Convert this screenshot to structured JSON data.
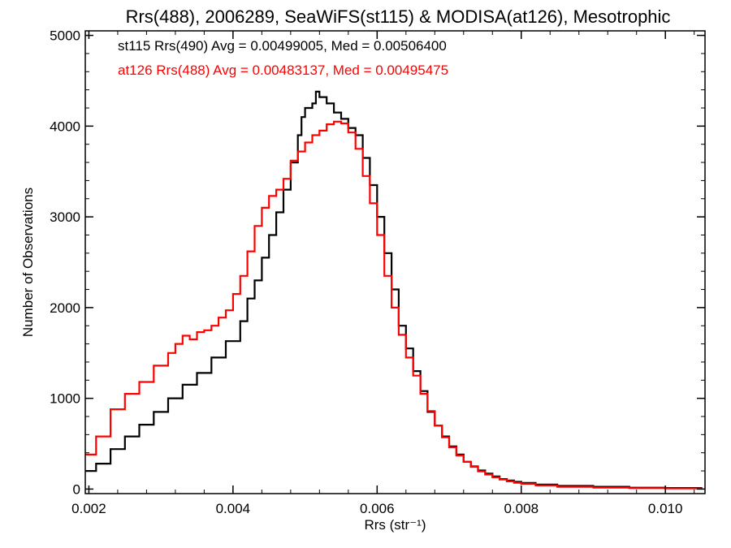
{
  "chart_data": {
    "type": "line",
    "title": "Rrs(488), 2006289, SeaWiFS(st115) & MODISA(at126), Mesotrophic",
    "xlabel": "Rrs (str⁻¹)",
    "ylabel": "Number of Observations",
    "xlim": [
      0.00195,
      0.01055
    ],
    "ylim": [
      -50,
      5050
    ],
    "x_ticks": [
      0.002,
      0.004,
      0.006,
      0.008,
      0.01
    ],
    "x_tick_labels": [
      "0.002",
      "0.004",
      "0.006",
      "0.008",
      "0.010"
    ],
    "y_ticks": [
      0,
      1000,
      2000,
      3000,
      4000,
      5000
    ],
    "y_tick_labels": [
      "0",
      "1000",
      "2000",
      "3000",
      "4000",
      "5000"
    ],
    "grid": false,
    "legend_position": "top-left",
    "series": [
      {
        "name": "st115 Rrs(490) Avg = 0.00499005, Med = 0.00506400",
        "color": "#000000",
        "x": [
          0.00195,
          0.0021,
          0.0023,
          0.0025,
          0.0027,
          0.0029,
          0.0031,
          0.0033,
          0.0035,
          0.0037,
          0.0039,
          0.0041,
          0.0042,
          0.0043,
          0.0044,
          0.0045,
          0.0046,
          0.0047,
          0.0048,
          0.0049,
          0.00495,
          0.005,
          0.0051,
          0.00515,
          0.0052,
          0.0053,
          0.0054,
          0.0055,
          0.0056,
          0.0057,
          0.0058,
          0.0059,
          0.006,
          0.0061,
          0.0062,
          0.0063,
          0.0064,
          0.0065,
          0.0066,
          0.0067,
          0.0068,
          0.0069,
          0.007,
          0.0071,
          0.0072,
          0.0073,
          0.0074,
          0.0075,
          0.0076,
          0.0077,
          0.0078,
          0.0079,
          0.008,
          0.0082,
          0.0085,
          0.009,
          0.0095,
          0.01,
          0.0105
        ],
        "values": [
          200,
          280,
          440,
          580,
          710,
          850,
          1000,
          1150,
          1280,
          1450,
          1630,
          1850,
          2100,
          2300,
          2550,
          2800,
          3050,
          3300,
          3600,
          3900,
          4100,
          4200,
          4250,
          4380,
          4320,
          4250,
          4150,
          4080,
          3980,
          3900,
          3650,
          3350,
          3000,
          2600,
          2200,
          1800,
          1550,
          1300,
          1080,
          850,
          700,
          580,
          470,
          380,
          300,
          250,
          205,
          170,
          140,
          110,
          95,
          80,
          68,
          50,
          35,
          25,
          15,
          12,
          8
        ]
      },
      {
        "name": "at126 Rrs(488) Avg = 0.00483137, Med = 0.00495475",
        "color": "#ff0000",
        "x": [
          0.00195,
          0.0021,
          0.0023,
          0.0025,
          0.0027,
          0.0029,
          0.0031,
          0.0032,
          0.0033,
          0.0034,
          0.0035,
          0.0036,
          0.0037,
          0.0038,
          0.0039,
          0.004,
          0.0041,
          0.0042,
          0.0043,
          0.0044,
          0.0045,
          0.0046,
          0.0047,
          0.0048,
          0.0049,
          0.005,
          0.0051,
          0.0052,
          0.0053,
          0.0054,
          0.0055,
          0.0056,
          0.0057,
          0.0058,
          0.0059,
          0.006,
          0.0061,
          0.0062,
          0.0063,
          0.0064,
          0.0065,
          0.0066,
          0.0067,
          0.0068,
          0.0069,
          0.007,
          0.0071,
          0.0072,
          0.0073,
          0.0074,
          0.0075,
          0.0076,
          0.0077,
          0.0078,
          0.0079,
          0.008,
          0.0082,
          0.0085,
          0.009,
          0.0095,
          0.01,
          0.0105
        ],
        "values": [
          380,
          580,
          880,
          1050,
          1180,
          1360,
          1500,
          1600,
          1690,
          1650,
          1730,
          1750,
          1800,
          1890,
          1970,
          2150,
          2350,
          2620,
          2900,
          3100,
          3230,
          3300,
          3420,
          3620,
          3720,
          3820,
          3900,
          3950,
          4020,
          4050,
          4030,
          3930,
          3750,
          3450,
          3150,
          2800,
          2350,
          2000,
          1700,
          1450,
          1250,
          1050,
          860,
          700,
          570,
          460,
          370,
          300,
          245,
          195,
          160,
          130,
          105,
          85,
          70,
          58,
          40,
          25,
          15,
          10,
          6,
          4
        ]
      }
    ]
  }
}
